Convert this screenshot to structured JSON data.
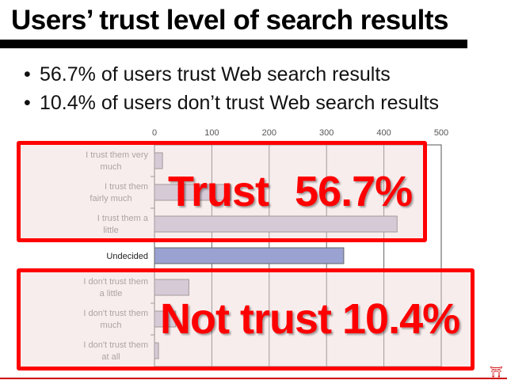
{
  "slide": {
    "title": "Users’ trust level of search results",
    "bullets": [
      "56.7% of users trust Web search results",
      "10.4% of users don’t trust Web search results"
    ],
    "overlays": {
      "trust_label": "Trust",
      "trust_percent": "56.7%",
      "not_trust_label": "Not trust",
      "not_trust_percent": "10.4%"
    },
    "colors": {
      "highlight": "#ff0000",
      "bar": "#c4c0d8",
      "bar_undecided": "#9aa2d2",
      "title_bar": "#000000"
    },
    "footer_icon": "torii-gate-icon"
  },
  "chart_data": {
    "type": "bar",
    "orientation": "horizontal",
    "categories": [
      "I trust them very much",
      "I trust them fairly much",
      "I trust them a little",
      "Undecided",
      "I don't trust them a little",
      "I don't trust them much",
      "I don't trust them at all"
    ],
    "values": [
      14,
      133,
      423,
      330,
      60,
      37,
      7
    ],
    "xlim": [
      0,
      500
    ],
    "xticks": [
      "0",
      "100",
      "200",
      "300",
      "400",
      "500"
    ],
    "grid": true,
    "title": "",
    "xlabel": "",
    "ylabel": ""
  }
}
